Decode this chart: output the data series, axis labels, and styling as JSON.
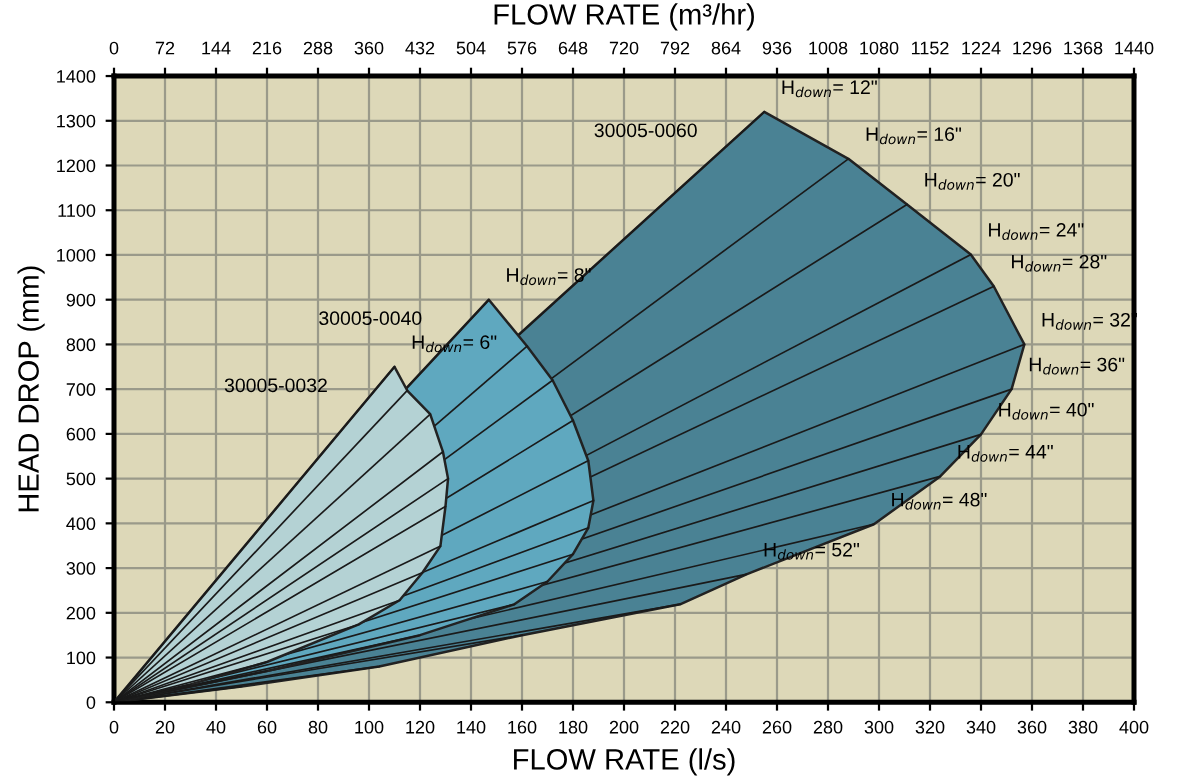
{
  "chart_data": {
    "type": "area",
    "xlabel": "FLOW RATE (l/s)",
    "ylabel": "HEAD DROP (mm)",
    "x2label": "FLOW RATE (m³/hr)",
    "xlim": [
      0,
      400
    ],
    "xticks": [
      0,
      20,
      40,
      60,
      80,
      100,
      120,
      140,
      160,
      180,
      200,
      220,
      240,
      260,
      280,
      300,
      320,
      340,
      360,
      380,
      400
    ],
    "ylim": [
      0,
      1400
    ],
    "yticks": [
      0,
      100,
      200,
      300,
      400,
      500,
      600,
      700,
      800,
      900,
      1000,
      1100,
      1200,
      1300,
      1400
    ],
    "x2lim": [
      0,
      1440
    ],
    "x2ticks": [
      0,
      72,
      144,
      216,
      288,
      360,
      432,
      504,
      576,
      648,
      720,
      792,
      864,
      936,
      1008,
      1080,
      1152,
      1224,
      1296,
      1368,
      1440
    ],
    "grid": true,
    "series": [
      {
        "name": "30005-0060",
        "color": "#4a8294",
        "x": [
          0,
          255,
          288,
          311,
          336,
          345,
          357,
          352,
          340,
          324,
          298,
          248,
          222,
          160,
          104,
          50,
          0
        ],
        "values": [
          0,
          1320,
          1215,
          1113,
          1001,
          930,
          800,
          700,
          599,
          505,
          398,
          286,
          219,
          150,
          80,
          35,
          0
        ]
      },
      {
        "name": "30005-0040",
        "color": "#5fa8bf",
        "x": [
          0,
          147,
          162,
          172,
          180,
          186,
          188,
          186,
          180,
          170,
          157,
          120,
          60,
          0
        ],
        "values": [
          0,
          900,
          796,
          720,
          630,
          540,
          451,
          390,
          331,
          270,
          219,
          150,
          70,
          0
        ]
      },
      {
        "name": "30005-0032",
        "color": "#b4d2d4",
        "x": [
          0,
          110,
          115,
          124,
          129,
          131,
          130,
          128,
          121,
          112,
          96,
          60,
          30,
          0
        ],
        "values": [
          0,
          750,
          697,
          644,
          560,
          500,
          438,
          349,
          290,
          228,
          174,
          90,
          40,
          0
        ]
      }
    ],
    "annotations": [
      {
        "text": "H$_{down}$= 6\"",
        "x": 110,
        "y": 750
      },
      {
        "text": "H$_{down}$= 8\"",
        "x": 147,
        "y": 900
      },
      {
        "text": "H$_{down}$= 12\"",
        "x": 255,
        "y": 1320
      },
      {
        "text": "H$_{down}$= 16\"",
        "x": 288,
        "y": 1215
      },
      {
        "text": "H$_{down}$= 20\"",
        "x": 311,
        "y": 1113
      },
      {
        "text": "H$_{down}$= 24\"",
        "x": 336,
        "y": 1001
      },
      {
        "text": "H$_{down}$= 28\"",
        "x": 345,
        "y": 930
      },
      {
        "text": "H$_{down}$= 32\"",
        "x": 357,
        "y": 800
      },
      {
        "text": "H$_{down}$= 36\"",
        "x": 352,
        "y": 700
      },
      {
        "text": "H$_{down}$= 40\"",
        "x": 340,
        "y": 599
      },
      {
        "text": "H$_{down}$= 44\"",
        "x": 324,
        "y": 505
      },
      {
        "text": "H$_{down}$= 48\"",
        "x": 298,
        "y": 398
      },
      {
        "text": "H$_{down}$= 52\"",
        "x": 248,
        "y": 286
      }
    ]
  }
}
